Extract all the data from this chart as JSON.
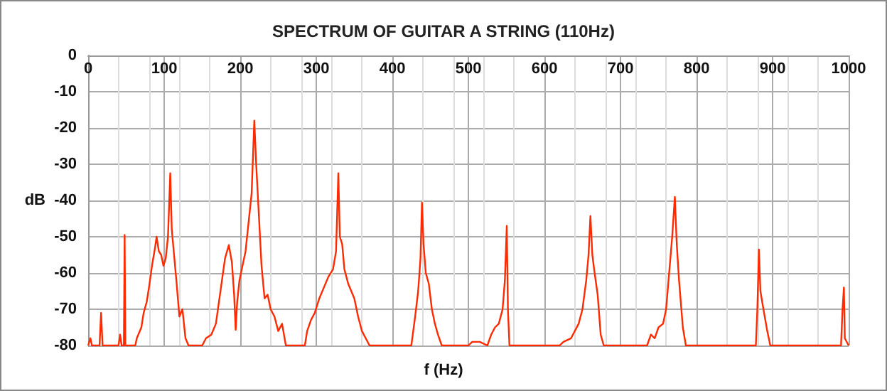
{
  "chart_data": {
    "type": "line",
    "title": "SPECTRUM OF GUITAR A STRING (110Hz)",
    "xlabel": "f (Hz)",
    "ylabel": "dB",
    "x": [
      0,
      3,
      5,
      15,
      17,
      19,
      40,
      42,
      44,
      47,
      48,
      49,
      62,
      64,
      70,
      73,
      77,
      80,
      84,
      88,
      90,
      93,
      96,
      99,
      102,
      105,
      108,
      110,
      113,
      116,
      120,
      124,
      128,
      132,
      150,
      155,
      162,
      168,
      172,
      176,
      180,
      185,
      189,
      192,
      194,
      196,
      199,
      203,
      207,
      212,
      215,
      218.5,
      221,
      224,
      228,
      232,
      236,
      240,
      245,
      250,
      255,
      260,
      285,
      288,
      293,
      298,
      304,
      310,
      316,
      322,
      326,
      329,
      331,
      334,
      337,
      342,
      346,
      350,
      355,
      360,
      365,
      370,
      425,
      430,
      434,
      437,
      439,
      441,
      444,
      448,
      452,
      456,
      460,
      465,
      500,
      505,
      515,
      525,
      530,
      535,
      540,
      545,
      548,
      550.5,
      552,
      554,
      620,
      625,
      635,
      645,
      650,
      655,
      658,
      660.5,
      663,
      666,
      670,
      674,
      678,
      735,
      740,
      745,
      750,
      756,
      760,
      764,
      768,
      771.5,
      774,
      777,
      782,
      786,
      878,
      880,
      882,
      884,
      888,
      893,
      897,
      990,
      992,
      993.8,
      995,
      1000
    ],
    "series": [
      {
        "color": "#ff2a00",
        "values": [
          -80,
          -78,
          -80,
          -80,
          -71,
          -80,
          -80,
          -77,
          -80,
          -80,
          -49.5,
          -80,
          -80,
          -78,
          -75,
          -71,
          -68,
          -64,
          -58,
          -53,
          -50,
          -54,
          -55,
          -58,
          -56,
          -50,
          -32.5,
          -48,
          -55,
          -62,
          -72,
          -70,
          -78,
          -80,
          -80,
          -78,
          -77,
          -74,
          -68,
          -62,
          -56,
          -52.3,
          -57,
          -66,
          -75.7,
          -68,
          -62,
          -58,
          -54,
          -44,
          -38,
          -18,
          -30,
          -42,
          -58,
          -67,
          -66,
          -70,
          -72,
          -76,
          -74,
          -80,
          -80,
          -76,
          -73,
          -71,
          -67,
          -64,
          -61,
          -59,
          -54,
          -32.5,
          -50,
          -52,
          -59,
          -63,
          -65,
          -67,
          -72,
          -76,
          -78,
          -80,
          -80,
          -72,
          -65,
          -56,
          -40.6,
          -52,
          -60,
          -63,
          -70,
          -74,
          -77,
          -80,
          -80,
          -79,
          -79,
          -80,
          -77,
          -75,
          -74,
          -70,
          -62,
          -47,
          -70,
          -80,
          -80,
          -79,
          -78,
          -74,
          -70,
          -62,
          -55,
          -44.3,
          -55,
          -60,
          -66,
          -77,
          -80,
          -80,
          -77,
          -78,
          -75,
          -74,
          -70,
          -60,
          -50,
          -39,
          -52,
          -62,
          -75,
          -80,
          -80,
          -70,
          -53.5,
          -65,
          -70,
          -76,
          -80,
          -80,
          -70,
          -64,
          -78,
          -80
        ]
      }
    ],
    "xlim": [
      0,
      1000
    ],
    "xticks": [
      0,
      100,
      200,
      300,
      400,
      500,
      600,
      700,
      800,
      900,
      1000
    ],
    "ylim": [
      -80,
      0
    ],
    "yticks": [
      -80,
      -70,
      -60,
      -50,
      -40,
      -30,
      -20,
      -10,
      0
    ],
    "grid": true,
    "marker": "none",
    "line_style": "solid"
  }
}
